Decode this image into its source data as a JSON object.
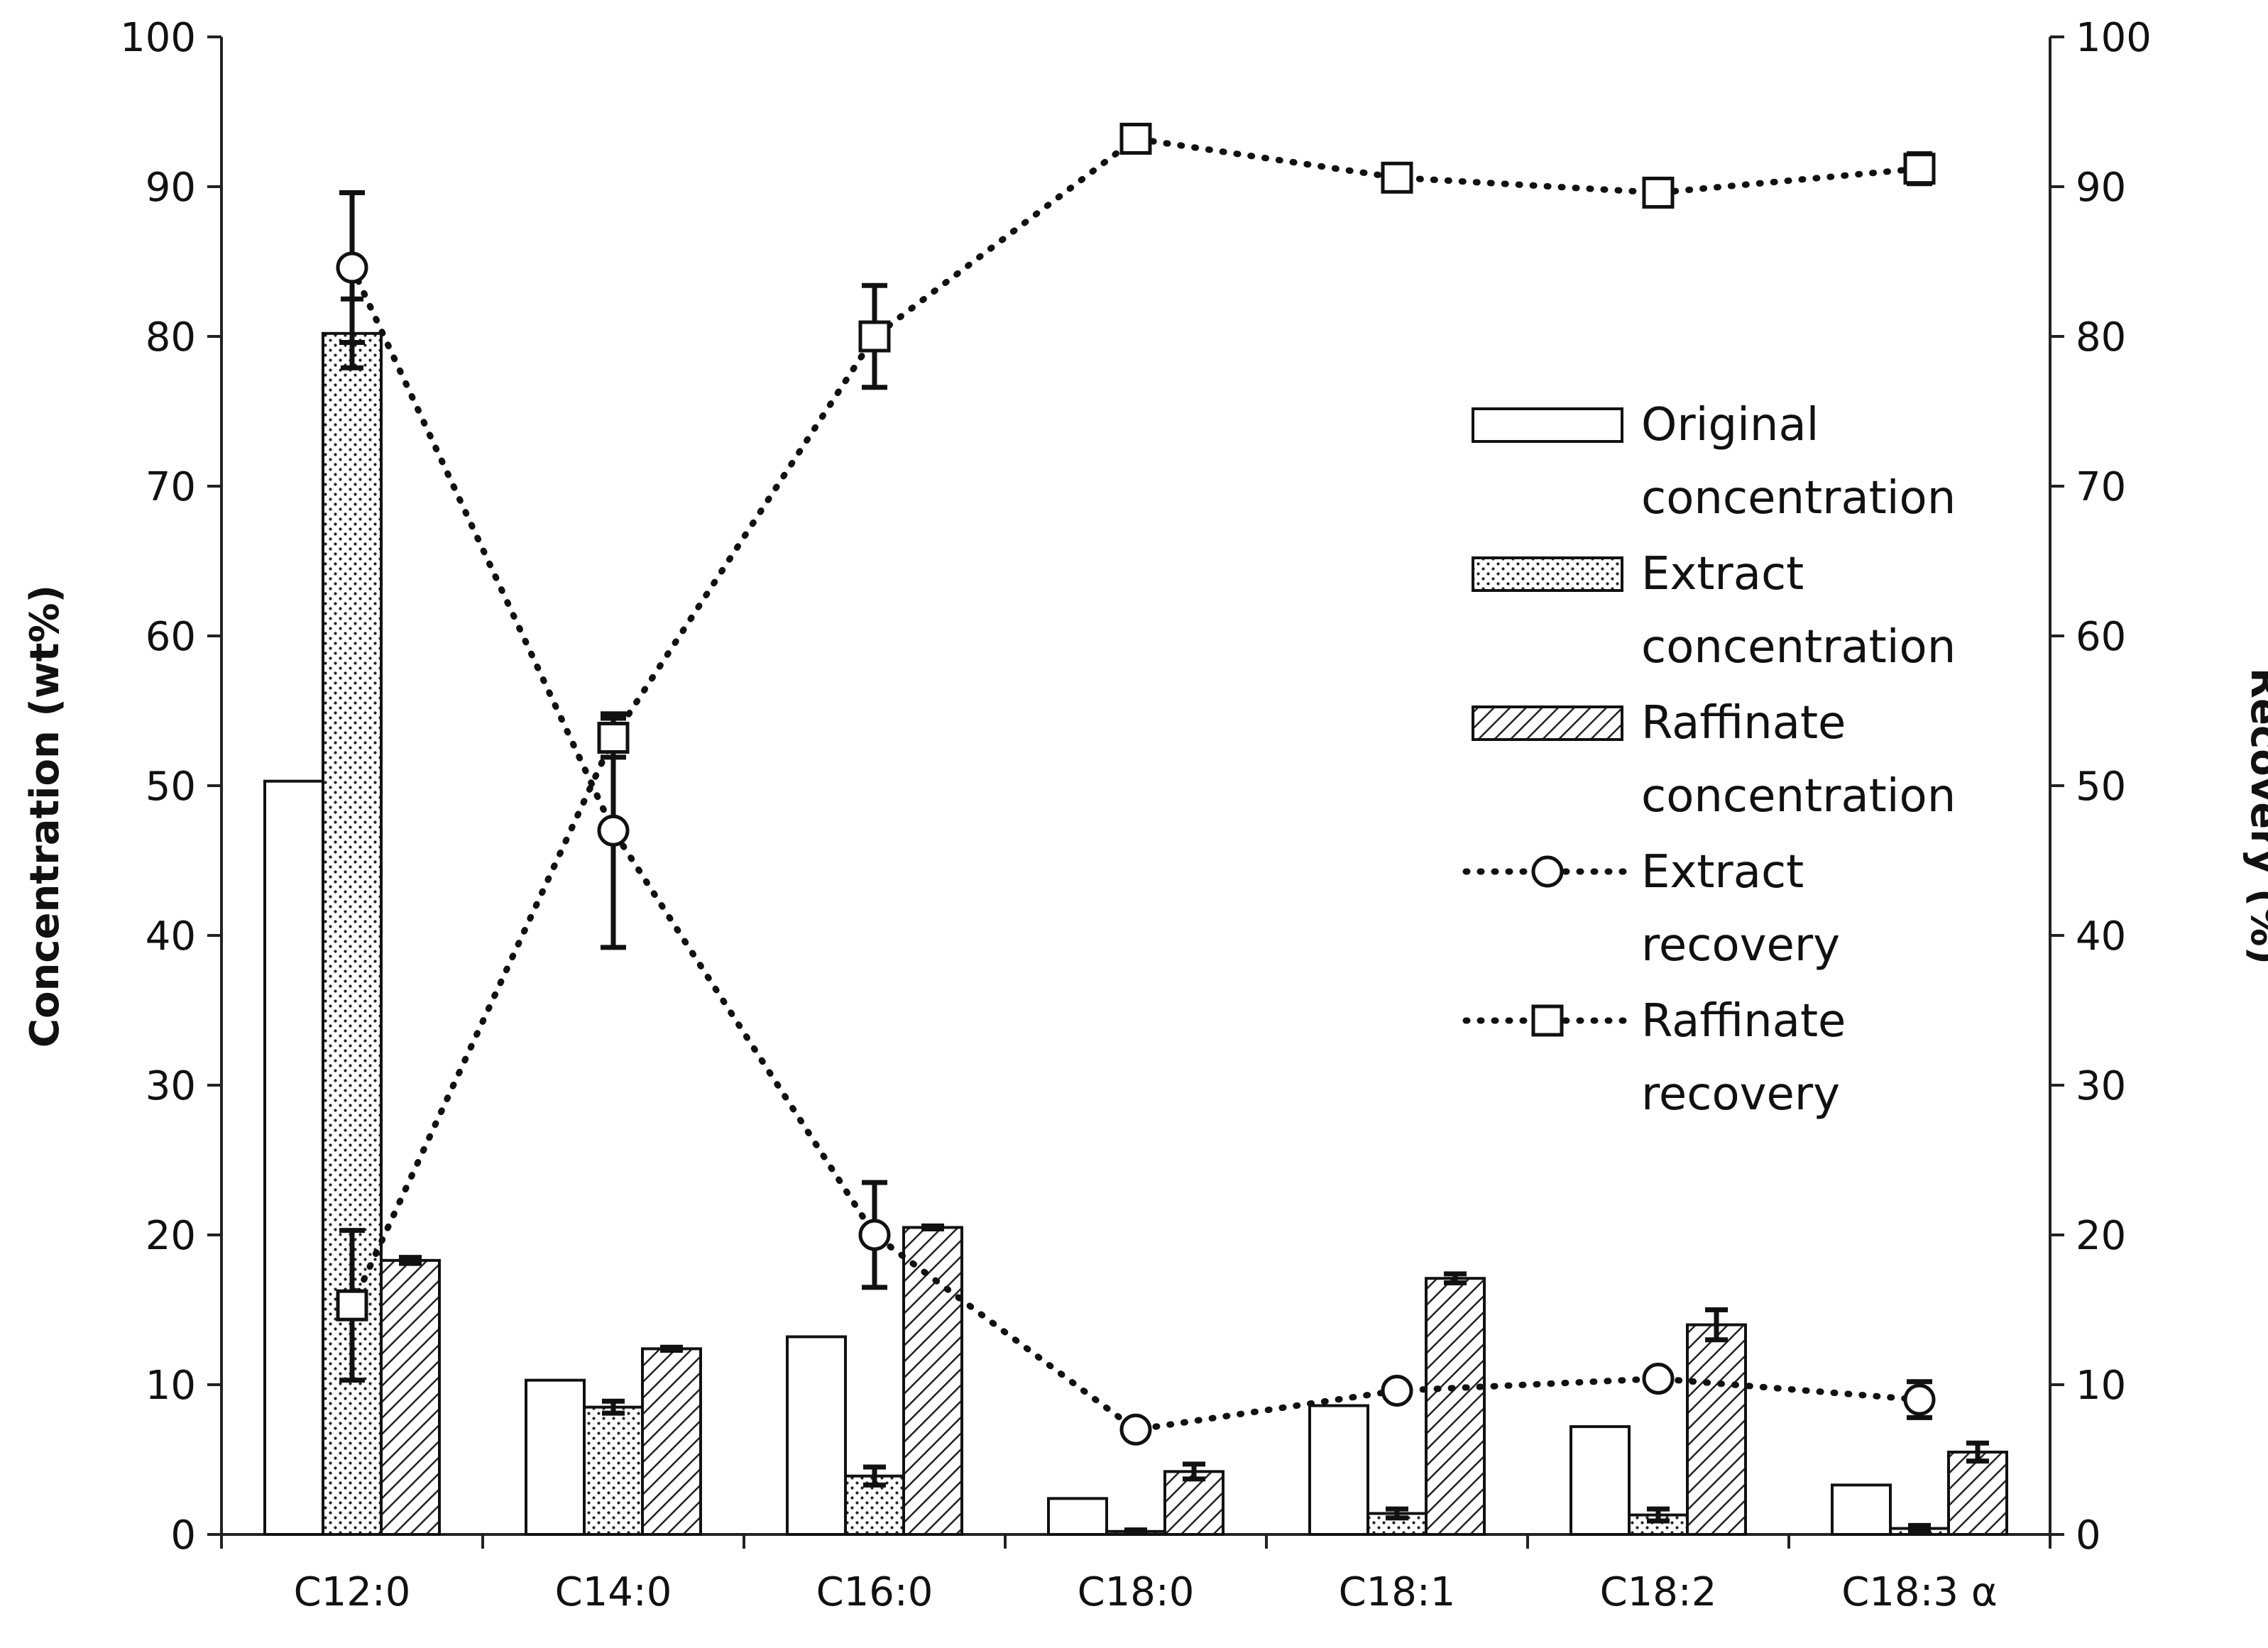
{
  "chart_data": {
    "type": "bar",
    "categories": [
      "C12:0",
      "C14:0",
      "C16:0",
      "C18:0",
      "C18:1",
      "C18:2",
      "C18:3 α"
    ],
    "left_axis": {
      "label": "Concentration (wt%)",
      "ylim": [
        0,
        100
      ],
      "ticks": [
        0,
        10,
        20,
        30,
        40,
        50,
        60,
        70,
        80,
        90,
        100
      ]
    },
    "right_axis": {
      "label": "Recovery (%)",
      "ylim": [
        0,
        100
      ],
      "ticks": [
        0,
        10,
        20,
        30,
        40,
        50,
        60,
        70,
        80,
        90,
        100
      ]
    },
    "bar_series": [
      {
        "name": "Original concentration",
        "legend_lines": [
          "Original",
          "concentration"
        ],
        "pattern": "plain",
        "values": [
          50.3,
          10.3,
          13.2,
          2.4,
          8.6,
          7.2,
          3.3
        ],
        "errors": [
          0,
          0,
          0,
          0,
          0,
          0,
          0
        ]
      },
      {
        "name": "Extract concentration",
        "legend_lines": [
          "Extract",
          "concentration"
        ],
        "pattern": "dots",
        "values": [
          80.2,
          8.5,
          3.9,
          0.2,
          1.4,
          1.3,
          0.4
        ],
        "errors": [
          2.3,
          0.4,
          0.6,
          0.1,
          0.3,
          0.4,
          0.2
        ]
      },
      {
        "name": "Raffinate concentration",
        "legend_lines": [
          "Raffinate",
          "concentration"
        ],
        "pattern": "hatch",
        "values": [
          18.3,
          12.4,
          20.5,
          4.2,
          17.1,
          14.0,
          5.5
        ],
        "errors": [
          0.2,
          0.1,
          0.1,
          0.5,
          0.3,
          1.0,
          0.6
        ]
      }
    ],
    "line_series": [
      {
        "name": "Extract recovery",
        "legend_lines": [
          "Extract",
          "recovery"
        ],
        "marker": "circle",
        "axis": "right",
        "values": [
          84.6,
          47.0,
          20.0,
          7.0,
          9.6,
          10.4,
          9.0
        ],
        "errors": [
          5.0,
          7.8,
          3.5,
          0.3,
          0.3,
          0.3,
          1.2
        ]
      },
      {
        "name": "Raffinate recovery",
        "legend_lines": [
          "Raffinate",
          "recovery"
        ],
        "marker": "square",
        "axis": "right",
        "values": [
          15.3,
          53.2,
          80.0,
          93.2,
          90.6,
          89.6,
          91.2
        ],
        "errors": [
          5.0,
          1.3,
          3.4,
          0.3,
          0.3,
          0.3,
          1.0
        ]
      }
    ],
    "legend_position": "upper-right inside plot"
  }
}
